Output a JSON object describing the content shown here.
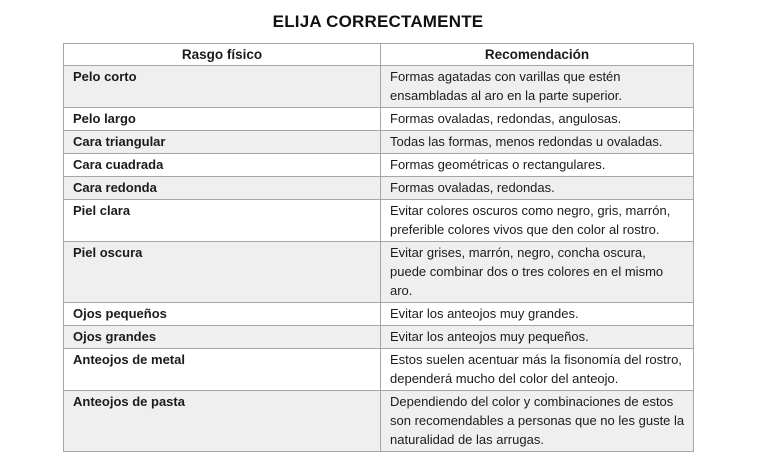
{
  "page": {
    "title": "ELIJA CORRECTAMENTE"
  },
  "table": {
    "headers": [
      "Rasgo físico",
      "Recomendación"
    ],
    "rows": [
      {
        "feature": "Pelo corto",
        "recommendation": "Formas agatadas con varillas que estén ensambladas al aro en la parte superior.",
        "shaded": true
      },
      {
        "feature": "Pelo largo",
        "recommendation": "Formas ovaladas, redondas, angulosas.",
        "shaded": false
      },
      {
        "feature": "Cara triangular",
        "recommendation": "Todas las formas, menos redondas u ovaladas.",
        "shaded": true
      },
      {
        "feature": "Cara cuadrada",
        "recommendation": "Formas geométricas o rectangulares.",
        "shaded": false
      },
      {
        "feature": "Cara redonda",
        "recommendation": "Formas ovaladas, redondas.",
        "shaded": true
      },
      {
        "feature": "Piel clara",
        "recommendation": "Evitar colores oscuros como negro, gris, marrón, preferible colores vivos que den color al rostro.",
        "shaded": false
      },
      {
        "feature": "Piel oscura",
        "recommendation": "Evitar grises, marrón, negro, concha oscura, puede combinar dos o tres colores en el mismo aro.",
        "shaded": true
      },
      {
        "feature": "Ojos pequeños",
        "recommendation": "Evitar los anteojos muy grandes.",
        "shaded": false
      },
      {
        "feature": "Ojos grandes",
        "recommendation": "Evitar los anteojos muy pequeños.",
        "shaded": true
      },
      {
        "feature": "Anteojos de metal",
        "recommendation": "Estos suelen acentuar más la fisonomía del rostro, dependerá mucho del color del anteojo.",
        "shaded": false
      },
      {
        "feature": "Anteojos de pasta",
        "recommendation": "Dependiendo del color y combinaciones de estos son recomendables a personas que no les guste la naturalidad de las arrugas.",
        "shaded": true
      }
    ]
  },
  "colors": {
    "row_shade": "#efefef",
    "border": "#a6a6a6",
    "text": "#1b1b1b"
  }
}
